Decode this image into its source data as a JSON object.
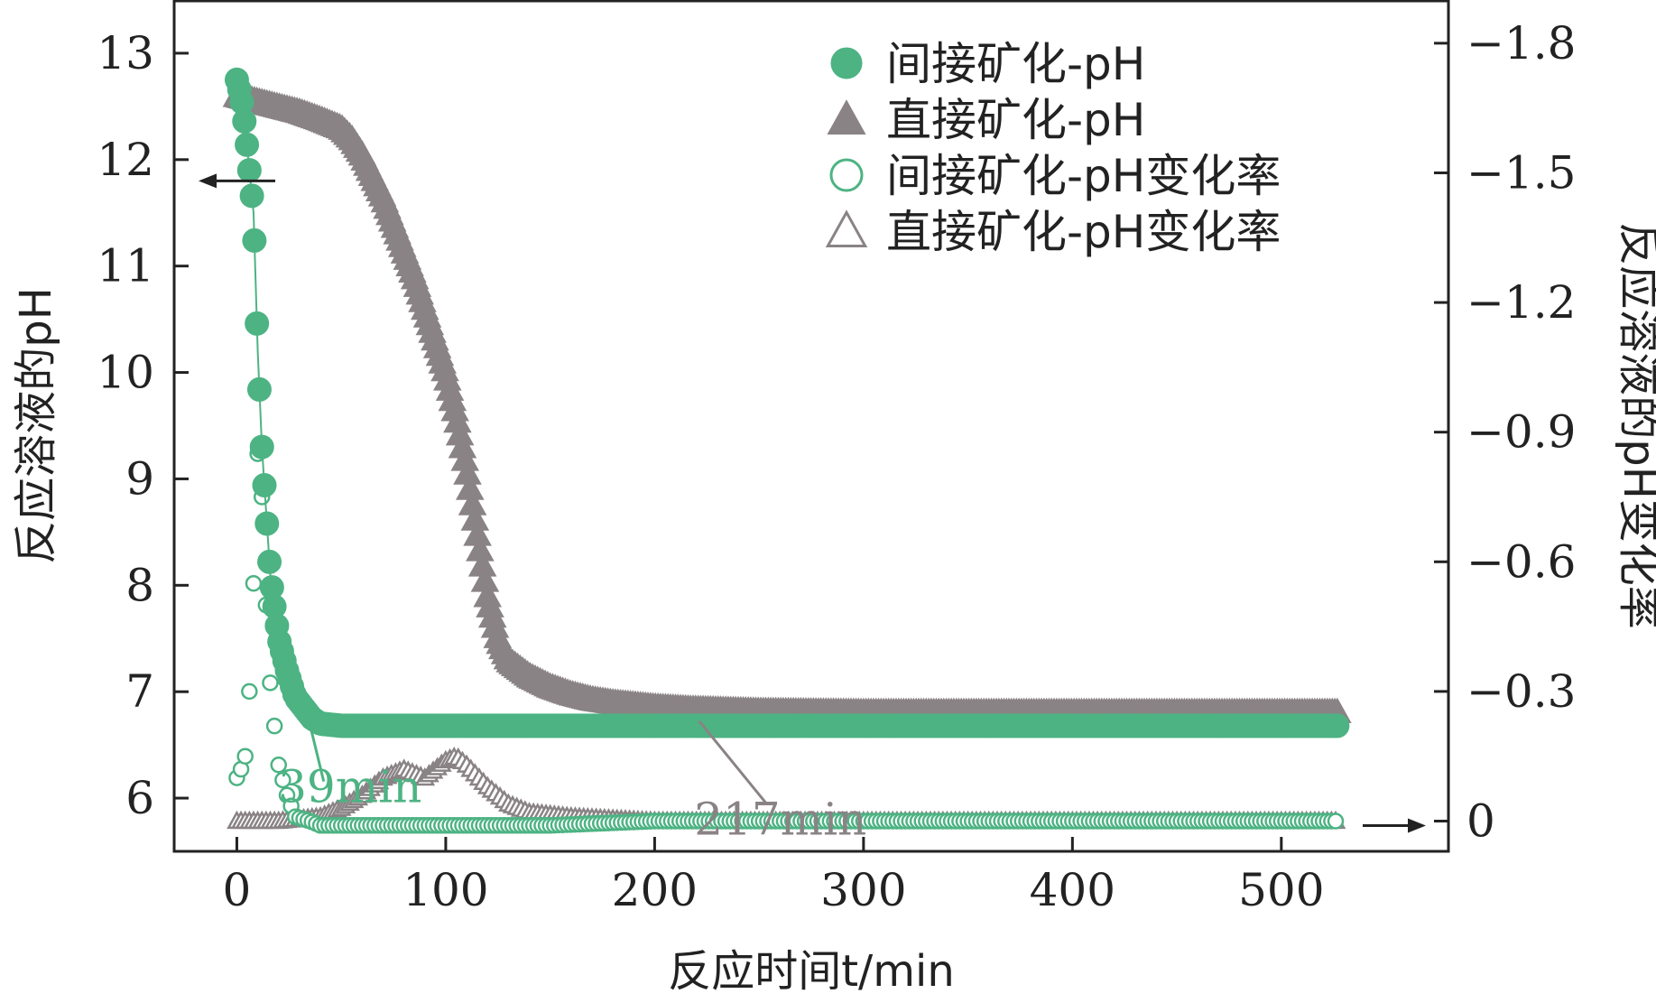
{
  "chart_data": {
    "type": "scatter",
    "xlabel": "反应时间t/min",
    "ylabel": "反应溶液的pH",
    "y2label": "反应溶液的pH变化率",
    "xlim": [
      -30,
      580
    ],
    "ylim": [
      5.5,
      13.5
    ],
    "y2lim": [
      0.07,
      -1.9
    ],
    "x_ticks": [
      "0",
      "100",
      "200",
      "300",
      "400",
      "500"
    ],
    "x_tick_values": [
      0,
      100,
      200,
      300,
      400,
      500
    ],
    "y_ticks": [
      "6",
      "7",
      "8",
      "9",
      "10",
      "11",
      "12",
      "13"
    ],
    "y_tick_values": [
      6,
      7,
      8,
      9,
      10,
      11,
      12,
      13
    ],
    "y2_ticks": [
      "0",
      "−0.3",
      "−0.6",
      "−0.9",
      "−1.2",
      "−1.5",
      "−1.8"
    ],
    "y2_tick_values": [
      0,
      -0.3,
      -0.6,
      -0.9,
      -1.2,
      -1.5,
      -1.8
    ],
    "legend_position": "top-right",
    "colors": {
      "green": "#4db383",
      "gray": "#8a8385"
    },
    "series": [
      {
        "name": "间接矿化-pH",
        "marker": "filled-circle",
        "axis": "left",
        "x": [
          0,
          2,
          4,
          6,
          8,
          10,
          12,
          14,
          16,
          18,
          20,
          24,
          28,
          32,
          36,
          40,
          50,
          100,
          200,
          300,
          400,
          527
        ],
        "y": [
          12.75,
          12.6,
          12.3,
          11.9,
          11.5,
          10.2,
          9.3,
          8.7,
          8.1,
          7.8,
          7.5,
          7.2,
          6.95,
          6.85,
          6.75,
          6.7,
          6.68,
          6.68,
          6.68,
          6.68,
          6.68,
          6.68
        ]
      },
      {
        "name": "直接矿化-pH",
        "marker": "filled-triangle",
        "axis": "left",
        "x": [
          0,
          10,
          20,
          30,
          40,
          50,
          55,
          60,
          65,
          70,
          75,
          80,
          85,
          90,
          95,
          100,
          105,
          110,
          115,
          120,
          125,
          130,
          140,
          150,
          160,
          170,
          180,
          190,
          200,
          217,
          250,
          300,
          400,
          527
        ],
        "y": [
          12.6,
          12.55,
          12.5,
          12.45,
          12.38,
          12.3,
          12.2,
          12.05,
          11.85,
          11.65,
          11.4,
          11.15,
          10.9,
          10.6,
          10.3,
          10.0,
          9.6,
          9.1,
          8.5,
          7.9,
          7.5,
          7.3,
          7.15,
          7.05,
          6.98,
          6.93,
          6.9,
          6.88,
          6.86,
          6.84,
          6.82,
          6.81,
          6.81,
          6.81
        ]
      },
      {
        "name": "间接矿化-pH变化率",
        "marker": "open-circle",
        "axis": "right",
        "x": [
          0,
          2,
          4,
          6,
          8,
          10,
          12,
          14,
          16,
          18,
          20,
          24,
          28,
          35,
          40,
          60,
          100,
          150,
          200,
          300,
          400,
          527
        ],
        "y": [
          -0.1,
          -0.12,
          -0.15,
          -0.3,
          -0.55,
          -0.85,
          -0.75,
          -0.5,
          -0.32,
          -0.22,
          -0.13,
          -0.06,
          -0.01,
          0.0,
          0.01,
          0.01,
          0.01,
          0.01,
          0.0,
          0.0,
          0.0,
          0.0
        ]
      },
      {
        "name": "直接矿化-pH变化率",
        "marker": "open-triangle",
        "axis": "right",
        "x": [
          0,
          20,
          40,
          50,
          60,
          70,
          80,
          90,
          100,
          105,
          110,
          120,
          130,
          140,
          160,
          200,
          300,
          400,
          527
        ],
        "y": [
          0.0,
          0.0,
          -0.01,
          -0.03,
          -0.06,
          -0.1,
          -0.12,
          -0.1,
          -0.14,
          -0.15,
          -0.13,
          -0.08,
          -0.04,
          -0.02,
          -0.01,
          0.0,
          0.0,
          0.0,
          0.0
        ]
      }
    ],
    "annotations": [
      {
        "text": "39min",
        "x": 39,
        "y": 6.75,
        "color": "green"
      },
      {
        "text": "217min",
        "x": 217,
        "y": 6.86,
        "color": "gray"
      }
    ]
  }
}
